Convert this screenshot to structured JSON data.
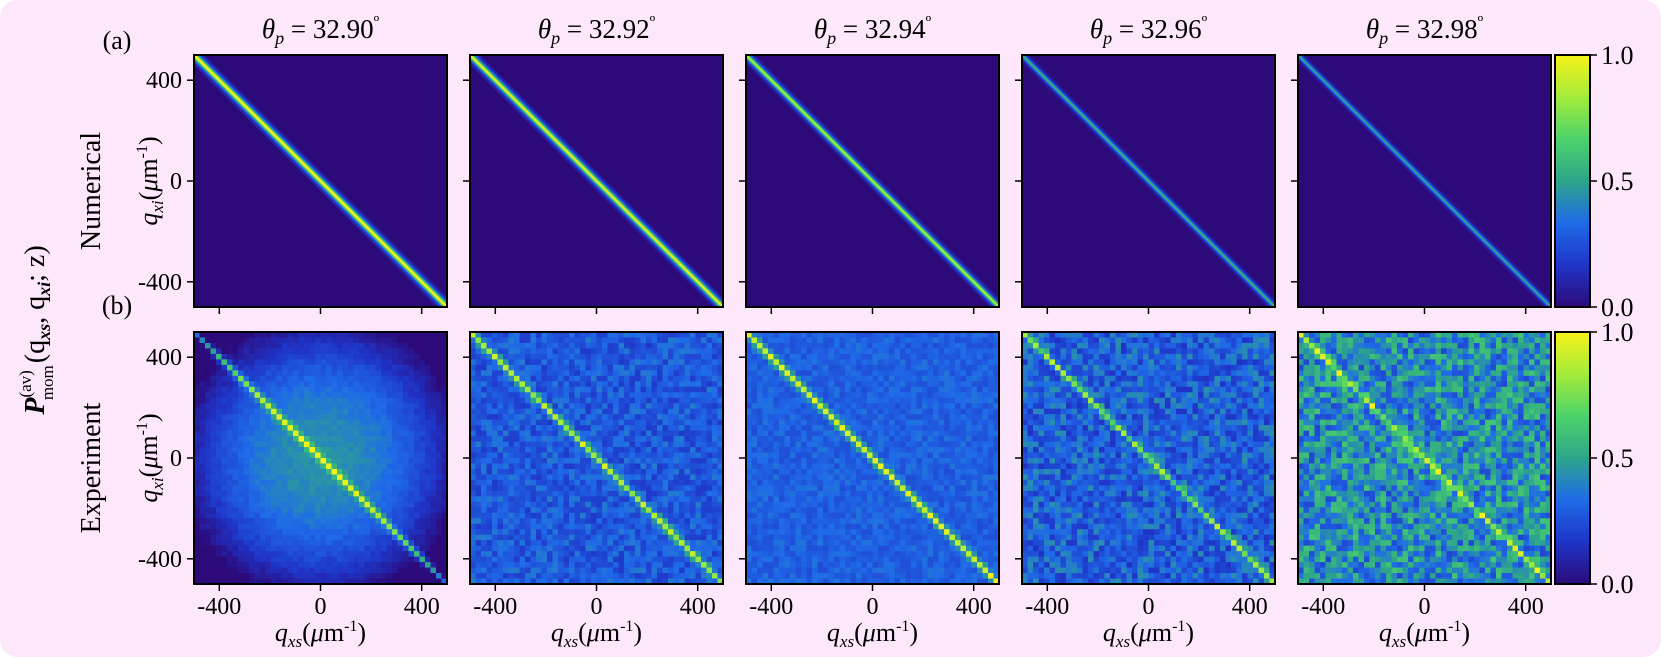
{
  "figure": {
    "background": "#fde8fb",
    "colormap": [
      "#2c0a7a",
      "#1f35c8",
      "#1f6be8",
      "#2ea58a",
      "#4cd36a",
      "#a4ec3a",
      "#f7f21a"
    ],
    "row_labels": [
      {
        "tag": "(a)",
        "label": "Numerical"
      },
      {
        "tag": "(b)",
        "label": "Experiment"
      }
    ],
    "shared_ylabel": "P(av)mom(qxs, qxi; z)",
    "shared_ylabel_parts": {
      "P": "P",
      "sup": "(av)",
      "sub": "mom",
      "args": "(q",
      "a1": "xs",
      "comma": ", q",
      "a2": "xi",
      "tail": "; z)"
    }
  },
  "chart_data": [
    {
      "type": "heatmap",
      "row": "Numerical",
      "columns": [
        {
          "theta_p": "32.90",
          "peak": 1.0,
          "width": 1.0
        },
        {
          "theta_p": "32.92",
          "peak": 0.95,
          "width": 0.95
        },
        {
          "theta_p": "32.94",
          "peak": 0.85,
          "width": 0.85
        },
        {
          "theta_p": "32.96",
          "peak": 0.55,
          "width": 0.75
        },
        {
          "theta_p": "32.98",
          "peak": 0.5,
          "width": 0.7
        }
      ],
      "column_title_prefix": "θp = ",
      "column_title_unit": "º",
      "xlabel": "qxs(μm-1)",
      "ylabel": "qxi(μm-1)",
      "xlim": [
        -500,
        500
      ],
      "ylim": [
        -500,
        500
      ],
      "x_ticks": [
        "-400",
        "0",
        "400"
      ],
      "y_ticks": [
        "400",
        "0",
        "-400"
      ],
      "colorbar": {
        "range": [
          0.0,
          1.0
        ],
        "ticks": [
          "1.0",
          "0.5",
          "0.0"
        ]
      }
    },
    {
      "type": "heatmap",
      "row": "Experiment",
      "columns": [
        {
          "theta_p": "32.90",
          "peak": 1.0,
          "background": 0.45,
          "noise": 0.03
        },
        {
          "theta_p": "32.92",
          "peak": 0.8,
          "background": 0.28,
          "noise": 0.1
        },
        {
          "theta_p": "32.94",
          "peak": 0.9,
          "background": 0.3,
          "noise": 0.06
        },
        {
          "theta_p": "32.96",
          "peak": 0.65,
          "background": 0.3,
          "noise": 0.14
        },
        {
          "theta_p": "32.98",
          "peak": 0.7,
          "background": 0.42,
          "noise": 0.2
        }
      ],
      "xlabel": "qxs(μm-1)",
      "ylabel": "qxi(μm-1)",
      "xlim": [
        -500,
        500
      ],
      "ylim": [
        -500,
        500
      ],
      "x_ticks": [
        "-400",
        "0",
        "400"
      ],
      "y_ticks": [
        "400",
        "0",
        "-400"
      ],
      "colorbar": {
        "range": [
          0.0,
          1.0
        ],
        "ticks": [
          "1.0",
          "0.5",
          "0.0"
        ]
      }
    }
  ]
}
